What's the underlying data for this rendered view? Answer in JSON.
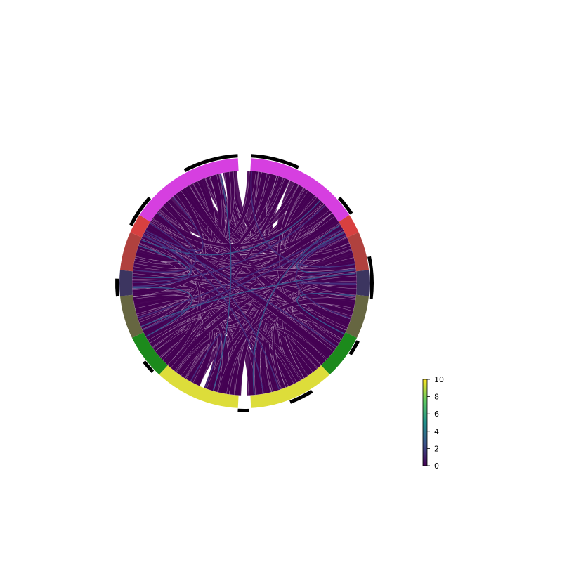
{
  "chart_data": {
    "type": "chord",
    "title": "",
    "segments": [
      {
        "color": "#d63fe0",
        "start_deg": 3,
        "end_deg": 57
      },
      {
        "color": "#d84040",
        "start_deg": 57,
        "end_deg": 66
      },
      {
        "color": "#b0413e",
        "start_deg": 66,
        "end_deg": 84
      },
      {
        "color": "#3c3560",
        "start_deg": 84,
        "end_deg": 96
      },
      {
        "color": "#666641",
        "start_deg": 96,
        "end_deg": 116
      },
      {
        "color": "#1c8a1c",
        "start_deg": 116,
        "end_deg": 137
      },
      {
        "color": "#dddd3a",
        "start_deg": 137,
        "end_deg": 177
      },
      {
        "color": "#dddd3a",
        "start_deg": 183,
        "end_deg": 223
      },
      {
        "color": "#1c8a1c",
        "start_deg": 223,
        "end_deg": 244
      },
      {
        "color": "#666641",
        "start_deg": 244,
        "end_deg": 264
      },
      {
        "color": "#3c3560",
        "start_deg": 264,
        "end_deg": 276
      },
      {
        "color": "#b0413e",
        "start_deg": 276,
        "end_deg": 294
      },
      {
        "color": "#d84040",
        "start_deg": 294,
        "end_deg": 303
      },
      {
        "color": "#d63fe0",
        "start_deg": 303,
        "end_deg": 357
      }
    ],
    "outer_track_arcs": [
      {
        "start_deg": 3,
        "end_deg": 25
      },
      {
        "start_deg": 48,
        "end_deg": 57
      },
      {
        "start_deg": 78,
        "end_deg": 97
      },
      {
        "start_deg": 117,
        "end_deg": 124
      },
      {
        "start_deg": 148,
        "end_deg": 159
      },
      {
        "start_deg": 178,
        "end_deg": 183
      },
      {
        "start_deg": 226,
        "end_deg": 232
      },
      {
        "start_deg": 264,
        "end_deg": 272
      },
      {
        "start_deg": 297,
        "end_deg": 312
      },
      {
        "start_deg": 332,
        "end_deg": 357
      }
    ],
    "chord_weight_summary": {
      "typical": 1,
      "max_visible": 3
    },
    "colorbar": {
      "colormap": "viridis",
      "min": 0,
      "max": 10,
      "ticks": [
        "0",
        "2",
        "4",
        "6",
        "8",
        "10"
      ],
      "colors": [
        "#440154",
        "#3b528b",
        "#21918c",
        "#5ec962",
        "#fde725"
      ]
    }
  }
}
